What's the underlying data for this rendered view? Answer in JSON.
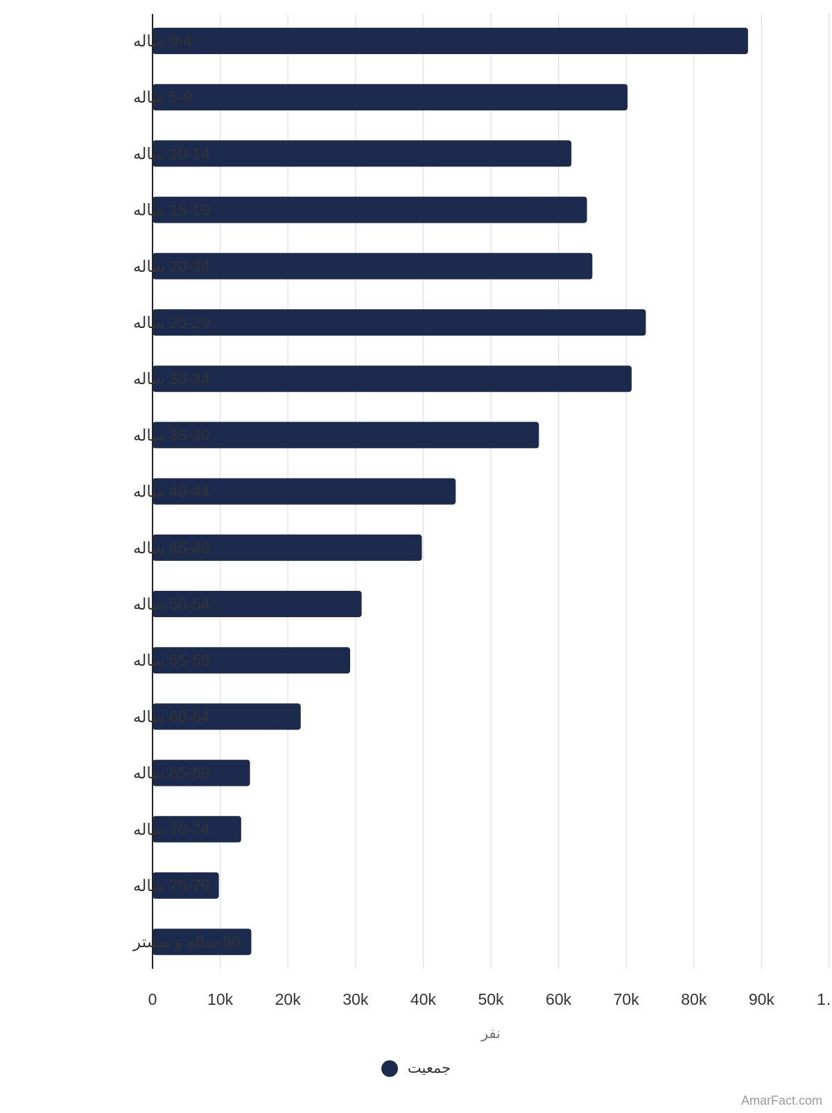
{
  "chart_data": {
    "type": "bar",
    "orientation": "horizontal",
    "categories": [
      "0-4 ساله",
      "5-9 ساله",
      "10-14 ساله",
      "15-19 ساله",
      "20-24 ساله",
      "25-29 ساله",
      "30-34 ساله",
      "35-39 ساله",
      "40-44 ساله",
      "45-49 ساله",
      "50-54 ساله",
      "55-59 ساله",
      "60-64 ساله",
      "65-69 ساله",
      "70-74 ساله",
      "75-79 ساله",
      "80 ساله و بیشتر"
    ],
    "series": [
      {
        "name": "جمعیت",
        "values": [
          88000,
          70200,
          61900,
          64200,
          65000,
          72900,
          70800,
          57100,
          44800,
          39800,
          30900,
          29200,
          21900,
          14400,
          13100,
          9800,
          14600
        ]
      }
    ],
    "xlabel": "نفر",
    "ylabel": "",
    "xlim": [
      0,
      100000
    ],
    "xticks": [
      "0",
      "10k",
      "20k",
      "30k",
      "40k",
      "50k",
      "60k",
      "70k",
      "80k",
      "90k",
      "1…"
    ],
    "grid": true,
    "legend": "bottom-center",
    "bar_color": "#1c2b4d"
  },
  "watermark": "AmarFact.com"
}
